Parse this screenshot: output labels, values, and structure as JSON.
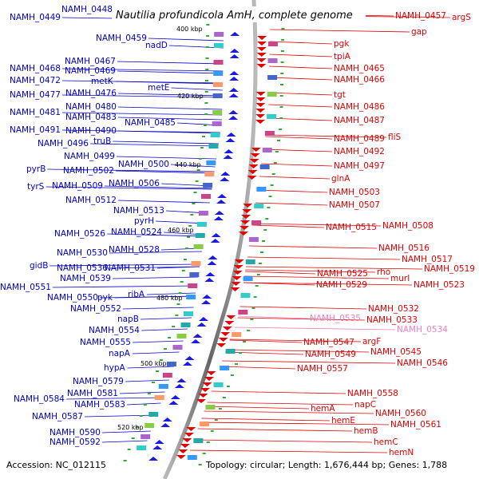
{
  "title": "Nautilia profundicola AmH, complete genome",
  "accession": "Accession: NC_012115",
  "summary": "Topology: circular; Length: 1,676,444 bp; Genes: 1,788",
  "colors": {
    "left_labels": "#0000cc",
    "right_labels": "#e00000",
    "highlight_labels": "#f080c0",
    "backbone": "#888888",
    "tick": "#33aa33"
  },
  "kbp_ticks": [
    "400 kbp",
    "420 kbp",
    "440 kbp",
    "460 kbp",
    "480 kbp",
    "500 kbp",
    "520 kbp"
  ],
  "left_genes": [
    "NAMH_0448",
    "NAMH_0449",
    "NAMH_0459",
    "nadD",
    "NAMH_0467",
    "NAMH_0468",
    "NAMH_0469",
    "NAMH_0472",
    "metK",
    "metE",
    "NAMH_0477",
    "NAMH_0476",
    "NAMH_0480",
    "NAMH_0481",
    "NAMH_0483",
    "NAMH_0485",
    "NAMH_0491",
    "NAMH_0490",
    "NAMH_0496",
    "truB",
    "NAMH_0499",
    "NAMH_0500",
    "pyrB",
    "NAMH_0502",
    "NAMH_0506",
    "tyrS",
    "NAMH_0509",
    "NAMH_0512",
    "NAMH_0513",
    "pyrH",
    "NAMH_0524",
    "NAMH_0526",
    "NAMH_0528",
    "NAMH_0530",
    "gidB",
    "NAMH_0536",
    "NAMH_0531",
    "NAMH_0539",
    "NAMH_0551",
    "NAMH_0550",
    "pyk",
    "ribA",
    "NAMH_0552",
    "napB",
    "NAMH_0554",
    "NAMH_0555",
    "napA",
    "hypA",
    "NAMH_0579",
    "NAMH_0581",
    "NAMH_0584",
    "NAMH_0583",
    "NAMH_0587",
    "NAMH_0590",
    "NAMH_0592"
  ],
  "right_genes": [
    "NAMH_0457",
    "argS",
    "gap",
    "pgk",
    "tpiA",
    "NAMH_0465",
    "NAMH_0466",
    "tgt",
    "NAMH_0486",
    "NAMH_0487",
    "NAMH_0489",
    "fliS",
    "NAMH_0492",
    "NAMH_0497",
    "glnA",
    "NAMH_0503",
    "NAMH_0507",
    "NAMH_0515",
    "NAMH_0508",
    "NAMH_0516",
    "NAMH_0517",
    "NAMH_0519",
    "NAMH_0525",
    "rho",
    "murI",
    "NAMH_0529",
    "NAMH_0523",
    "NAMH_0532",
    "NAMH_0533",
    "NAMH_0547",
    "argF",
    "NAMH_0549",
    "NAMH_0545",
    "NAMH_0546",
    "NAMH_0557",
    "NAMH_0558",
    "napC",
    "NAMH_0560",
    "hemA",
    "NAMH_0561",
    "hemE",
    "hemB",
    "hemC",
    "hemN"
  ],
  "highlight_genes": [
    "NAMH_0535",
    "NAMH_0534"
  ]
}
